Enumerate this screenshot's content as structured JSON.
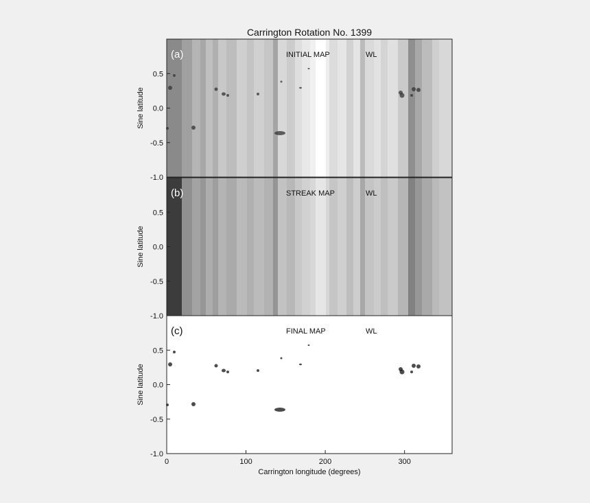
{
  "chart_data": [
    {
      "type": "map",
      "title": "Carrington Rotation No. 1399",
      "panel_label": "(a)",
      "map_label": "INITIAL MAP",
      "band_label": "WL",
      "ylabel": "Sine latitude",
      "ylim": [
        -1,
        1
      ],
      "yticks": [
        0.5,
        {
          "value": 0,
          "label": "0.0"
        },
        -0.5,
        {
          "value": -1,
          "label": "-1.0"
        }
      ],
      "xlim": [
        0,
        360
      ]
    },
    {
      "type": "map",
      "panel_label": "(b)",
      "map_label": "STREAK MAP",
      "band_label": "WL",
      "ylabel": "Sine latitude",
      "ylim": [
        -1,
        1
      ],
      "yticks": [
        0.5,
        {
          "value": 0,
          "label": "0.0"
        },
        -0.5,
        {
          "value": -1,
          "label": "-1.0"
        }
      ],
      "xlim": [
        0,
        360
      ]
    },
    {
      "type": "map",
      "panel_label": "(c)",
      "map_label": "FINAL MAP",
      "band_label": "WL",
      "ylabel": "Sine latitude",
      "xlabel": "Carrington longitude (degrees)",
      "ylim": [
        -1,
        1
      ],
      "yticks": [
        0.5,
        {
          "value": 0,
          "label": "0.0"
        },
        -0.5,
        {
          "value": -1,
          "label": "-1.0"
        }
      ],
      "xlim": [
        0,
        360
      ],
      "xticks": [
        0,
        100,
        200,
        300
      ]
    }
  ]
}
